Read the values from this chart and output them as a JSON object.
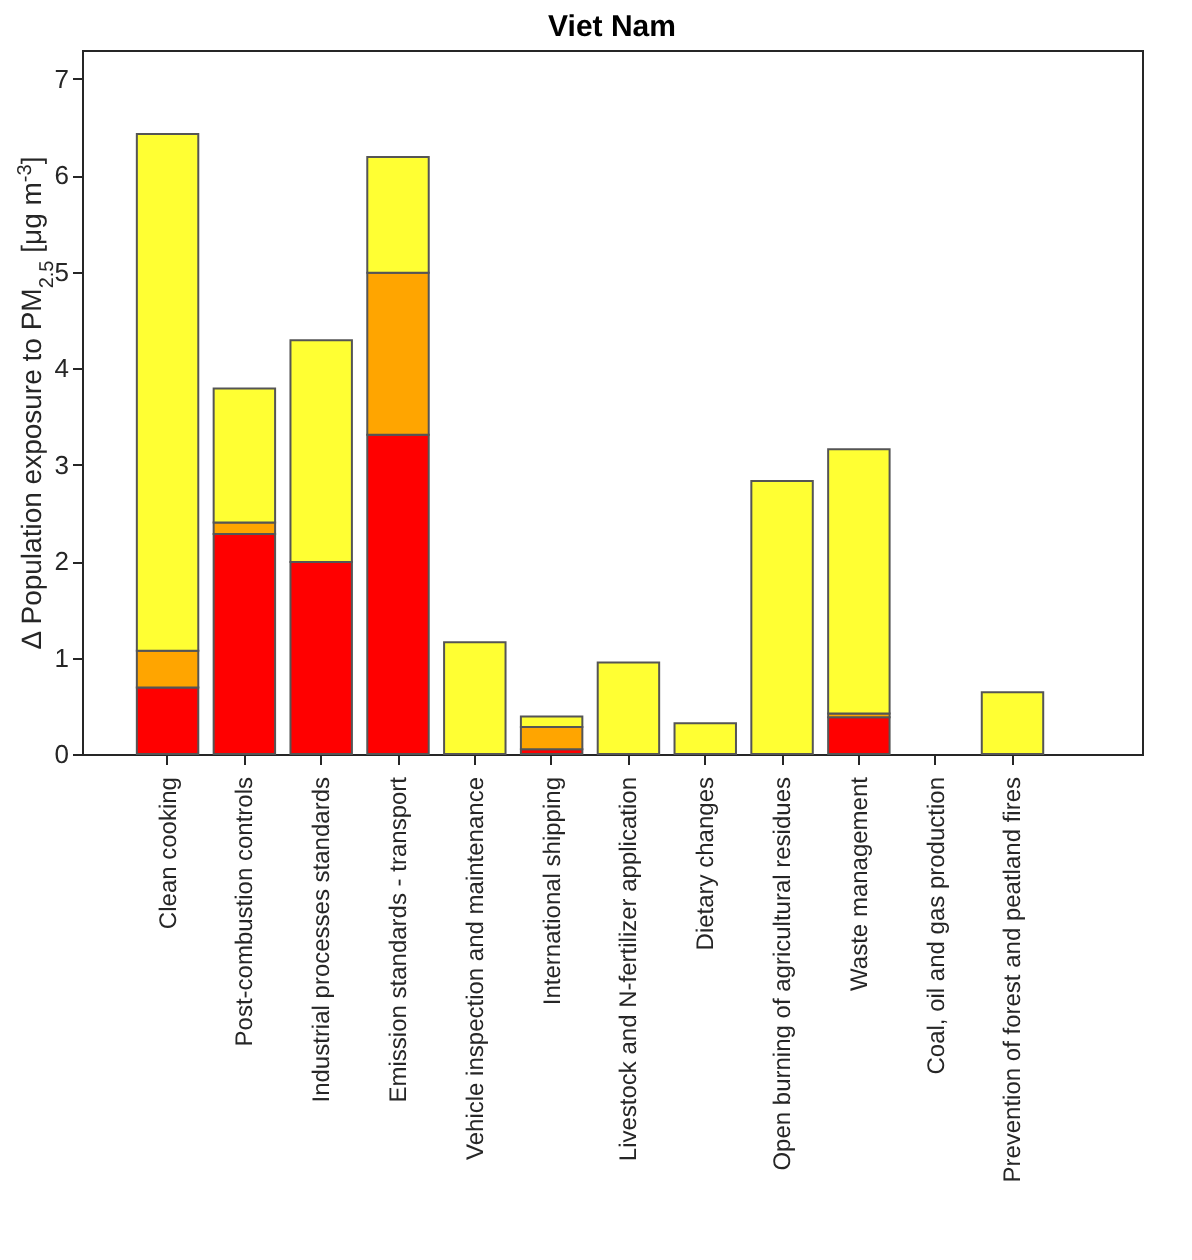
{
  "chart_data": {
    "type": "bar",
    "title": "Viet Nam",
    "ylabel": "Δ Population exposure to PM$_{2.5}$ [μg m$^{-3}$]",
    "categories": [
      "Clean cooking",
      "Post-combustion controls",
      "Industrial processes standards",
      "Emission standards - transport",
      "Vehicle inspection and maintenance",
      "International shipping",
      "Livestock and N-fertilizer application",
      "Dietary changes",
      "Open burning of agricultural residues",
      "Waste management",
      "Coal, oil and gas production",
      "Prevention of forest and peatland fires"
    ],
    "stacked": true,
    "series": [
      {
        "color": "#ff0000",
        "values": [
          0.69,
          2.28,
          1.99,
          3.31,
          0,
          0.05,
          0,
          0,
          0,
          0.38,
          0,
          0
        ]
      },
      {
        "color": "#ffa500",
        "values": [
          0.38,
          0.12,
          0,
          1.68,
          0,
          0.23,
          0,
          0,
          0,
          0.04,
          0,
          0
        ]
      },
      {
        "color": "#ffff33",
        "values": [
          5.36,
          1.39,
          2.3,
          1.2,
          1.16,
          0.11,
          0.95,
          0.32,
          2.83,
          2.74,
          0,
          0.64
        ]
      }
    ],
    "ylim": [
      0,
      7.3
    ],
    "yticks": [
      0,
      1,
      2,
      3,
      4,
      5,
      6,
      7
    ],
    "grid": false,
    "legend": false
  }
}
